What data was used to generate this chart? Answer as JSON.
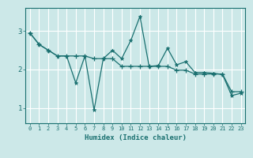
{
  "xlabel": "Humidex (Indice chaleur)",
  "background_color": "#cce8e8",
  "grid_color": "#ffffff",
  "line_color": "#1a7070",
  "xlim": [
    -0.5,
    23.5
  ],
  "ylim": [
    0.6,
    3.6
  ],
  "yticks": [
    1,
    2,
    3
  ],
  "xticks": [
    0,
    1,
    2,
    3,
    4,
    5,
    6,
    7,
    8,
    9,
    10,
    11,
    12,
    13,
    14,
    15,
    16,
    17,
    18,
    19,
    20,
    21,
    22,
    23
  ],
  "line1_x": [
    0,
    1,
    2,
    3,
    4,
    5,
    6,
    7,
    8,
    9,
    10,
    11,
    12,
    13,
    14,
    15,
    16,
    17,
    18,
    19,
    20,
    21,
    22,
    23
  ],
  "line1_y": [
    2.95,
    2.65,
    2.5,
    2.35,
    2.35,
    1.65,
    2.35,
    0.95,
    2.28,
    2.5,
    2.28,
    2.75,
    3.38,
    2.08,
    2.1,
    2.55,
    2.12,
    2.2,
    1.92,
    1.92,
    1.9,
    1.87,
    1.32,
    1.38
  ],
  "line2_x": [
    0,
    1,
    2,
    3,
    4,
    5,
    6,
    7,
    8,
    9,
    10,
    11,
    12,
    13,
    14,
    15,
    16,
    17,
    18,
    19,
    20,
    21,
    22,
    23
  ],
  "line2_y": [
    2.95,
    2.65,
    2.5,
    2.35,
    2.35,
    2.35,
    2.35,
    2.28,
    2.28,
    2.28,
    2.08,
    2.08,
    2.08,
    2.08,
    2.08,
    2.08,
    1.98,
    1.98,
    1.88,
    1.88,
    1.88,
    1.88,
    1.42,
    1.42
  ],
  "fig_width": 3.2,
  "fig_height": 2.0,
  "dpi": 100
}
